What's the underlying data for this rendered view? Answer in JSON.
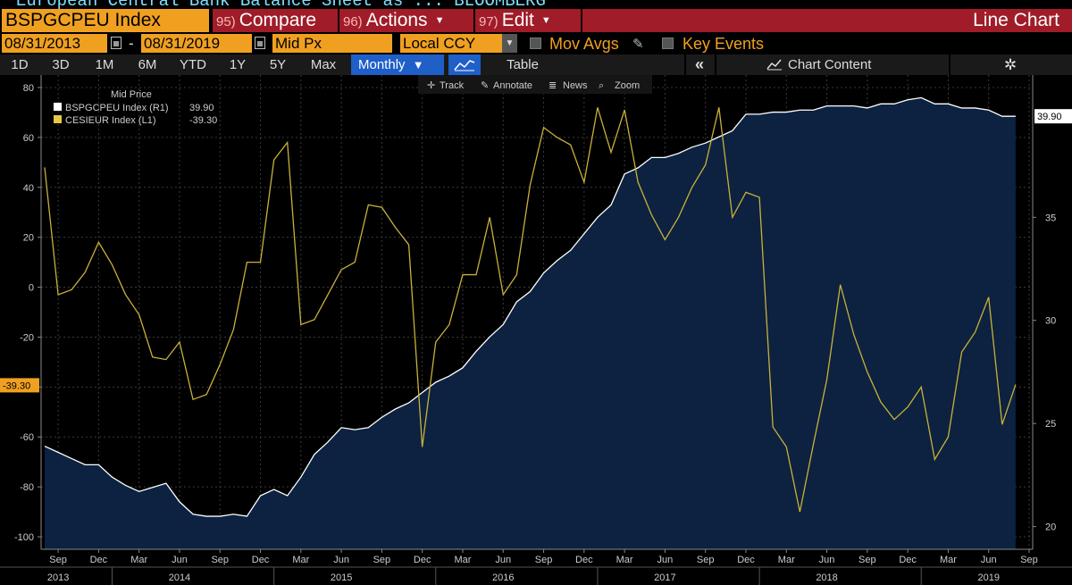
{
  "window": {
    "title_partial": "European Central Bank Balance Sheet as ...  BLOOMBERG"
  },
  "command_bar": {
    "ticker": "BSPGCPEU Index",
    "menus": [
      {
        "num": "95)",
        "label": "Compare",
        "has_dropdown": false
      },
      {
        "num": "96)",
        "label": "Actions",
        "has_dropdown": true
      },
      {
        "num": "97)",
        "label": "Edit",
        "has_dropdown": true
      }
    ],
    "chart_type": "Line Chart"
  },
  "options_bar": {
    "start_date": "08/31/2013",
    "date_separator": "-",
    "end_date": "08/31/2019",
    "field": "Mid Px",
    "currency": "Local CCY",
    "mov_avgs_label": "Mov Avgs",
    "key_events_label": "Key Events"
  },
  "timeframe_bar": {
    "buttons": [
      "1D",
      "3D",
      "1M",
      "6M",
      "YTD",
      "1Y",
      "5Y",
      "Max"
    ],
    "frequency": "Monthly",
    "table_label": "Table",
    "collapse_icon": "double-chevron-left-icon",
    "chart_content_label": "Chart Content",
    "settings_icon": "gear-icon"
  },
  "chart_toolbar": {
    "track": "Track",
    "annotate": "Annotate",
    "news": "News",
    "zoom": "Zoom"
  },
  "legend": {
    "title": "Mid Price",
    "entries": [
      {
        "label": "BSPGCPEU Index  (R1)",
        "value": "39.90",
        "color": "#ffffff"
      },
      {
        "label": "CESIEUR Index  (L1)",
        "value": "-39.30",
        "color": "#e8c84a"
      }
    ]
  },
  "colors": {
    "accent_orange": "#f0a020",
    "menu_red": "#a01c28",
    "area_fill": "#0c2240",
    "cesi_line": "#c9b13a",
    "active_blue": "#1e5fc8"
  },
  "chart_data": {
    "type": "line",
    "title": "",
    "x_ticks": [
      {
        "date": "2013-09",
        "label": "Sep"
      },
      {
        "date": "2013-12",
        "label": "Dec"
      },
      {
        "date": "2014-03",
        "label": "Mar"
      },
      {
        "date": "2014-06",
        "label": "Jun"
      },
      {
        "date": "2014-09",
        "label": "Sep"
      },
      {
        "date": "2014-12",
        "label": "Dec"
      },
      {
        "date": "2015-03",
        "label": "Mar"
      },
      {
        "date": "2015-06",
        "label": "Jun"
      },
      {
        "date": "2015-09",
        "label": "Sep"
      },
      {
        "date": "2015-12",
        "label": "Dec"
      },
      {
        "date": "2016-03",
        "label": "Mar"
      },
      {
        "date": "2016-06",
        "label": "Jun"
      },
      {
        "date": "2016-09",
        "label": "Sep"
      },
      {
        "date": "2016-12",
        "label": "Dec"
      },
      {
        "date": "2017-03",
        "label": "Mar"
      },
      {
        "date": "2017-06",
        "label": "Jun"
      },
      {
        "date": "2017-09",
        "label": "Sep"
      },
      {
        "date": "2017-12",
        "label": "Dec"
      },
      {
        "date": "2018-03",
        "label": "Mar"
      },
      {
        "date": "2018-06",
        "label": "Jun"
      },
      {
        "date": "2018-09",
        "label": "Sep"
      },
      {
        "date": "2018-12",
        "label": "Dec"
      },
      {
        "date": "2019-03",
        "label": "Mar"
      },
      {
        "date": "2019-06",
        "label": "Jun"
      },
      {
        "date": "2019-09",
        "label": "Sep"
      }
    ],
    "year_labels": [
      {
        "date": "2013-09",
        "label": "2013"
      },
      {
        "date": "2014-06",
        "label": "2014"
      },
      {
        "date": "2015-06",
        "label": "2015"
      },
      {
        "date": "2016-06",
        "label": "2016"
      },
      {
        "date": "2017-06",
        "label": "2017"
      },
      {
        "date": "2018-06",
        "label": "2018"
      },
      {
        "date": "2019-06",
        "label": "2019"
      }
    ],
    "x_range": [
      "2013-08",
      "2019-09"
    ],
    "left_axis": {
      "series": "CESIEUR Index",
      "ylim": [
        -105,
        85
      ],
      "ticks": [
        80,
        60,
        40,
        20,
        0,
        -20,
        -40,
        -60,
        -80,
        -100
      ]
    },
    "right_axis": {
      "series": "BSPGCPEU Index",
      "ylim": [
        18.9,
        41.9
      ],
      "ticks": [
        20,
        25,
        30,
        35
      ]
    },
    "grid": true,
    "legend_position": "top-left",
    "last_value_labels": {
      "right": "39.90",
      "left": "-39.30"
    },
    "series": [
      {
        "name": "BSPGCPEU Index",
        "axis": "right",
        "style": "area",
        "dates": [
          "2013-08",
          "2013-09",
          "2013-10",
          "2013-11",
          "2013-12",
          "2014-01",
          "2014-02",
          "2014-03",
          "2014-04",
          "2014-05",
          "2014-06",
          "2014-07",
          "2014-08",
          "2014-09",
          "2014-10",
          "2014-11",
          "2014-12",
          "2015-01",
          "2015-02",
          "2015-03",
          "2015-04",
          "2015-05",
          "2015-06",
          "2015-07",
          "2015-08",
          "2015-09",
          "2015-10",
          "2015-11",
          "2015-12",
          "2016-01",
          "2016-02",
          "2016-03",
          "2016-04",
          "2016-05",
          "2016-06",
          "2016-07",
          "2016-08",
          "2016-09",
          "2016-10",
          "2016-11",
          "2016-12",
          "2017-01",
          "2017-02",
          "2017-03",
          "2017-04",
          "2017-05",
          "2017-06",
          "2017-07",
          "2017-08",
          "2017-09",
          "2017-10",
          "2017-11",
          "2017-12",
          "2018-01",
          "2018-02",
          "2018-03",
          "2018-04",
          "2018-05",
          "2018-06",
          "2018-07",
          "2018-08",
          "2018-09",
          "2018-10",
          "2018-11",
          "2018-12",
          "2019-01",
          "2019-02",
          "2019-03",
          "2019-04",
          "2019-05",
          "2019-06",
          "2019-07",
          "2019-08"
        ],
        "values": [
          23.9,
          23.6,
          23.3,
          23.0,
          23.0,
          22.4,
          22.0,
          21.7,
          21.9,
          22.1,
          21.2,
          20.6,
          20.5,
          20.5,
          20.6,
          20.5,
          21.5,
          21.8,
          21.5,
          22.4,
          23.5,
          24.1,
          24.8,
          24.7,
          24.8,
          25.3,
          25.7,
          26.0,
          26.5,
          27.0,
          27.3,
          27.7,
          28.5,
          29.2,
          29.8,
          30.9,
          31.4,
          32.3,
          32.9,
          33.4,
          34.2,
          35.0,
          35.6,
          37.1,
          37.4,
          37.9,
          37.9,
          38.1,
          38.4,
          38.6,
          38.9,
          39.2,
          40.0,
          40.0,
          40.1,
          40.1,
          40.2,
          40.2,
          40.4,
          40.4,
          40.4,
          40.3,
          40.5,
          40.5,
          40.7,
          40.8,
          40.5,
          40.5,
          40.3,
          40.3,
          40.2,
          39.9,
          39.9
        ]
      },
      {
        "name": "CESIEUR Index",
        "axis": "left",
        "style": "line",
        "dates": [
          "2013-08",
          "2013-09",
          "2013-10",
          "2013-11",
          "2013-12",
          "2014-01",
          "2014-02",
          "2014-03",
          "2014-04",
          "2014-05",
          "2014-06",
          "2014-07",
          "2014-08",
          "2014-09",
          "2014-10",
          "2014-11",
          "2014-12",
          "2015-01",
          "2015-02",
          "2015-03",
          "2015-04",
          "2015-05",
          "2015-06",
          "2015-07",
          "2015-08",
          "2015-09",
          "2015-10",
          "2015-11",
          "2015-12",
          "2016-01",
          "2016-02",
          "2016-03",
          "2016-04",
          "2016-05",
          "2016-06",
          "2016-07",
          "2016-08",
          "2016-09",
          "2016-10",
          "2016-11",
          "2016-12",
          "2017-01",
          "2017-02",
          "2017-03",
          "2017-04",
          "2017-05",
          "2017-06",
          "2017-07",
          "2017-08",
          "2017-09",
          "2017-10",
          "2017-11",
          "2017-12",
          "2018-01",
          "2018-02",
          "2018-03",
          "2018-04",
          "2018-05",
          "2018-06",
          "2018-07",
          "2018-08",
          "2018-09",
          "2018-10",
          "2018-11",
          "2018-12",
          "2019-01",
          "2019-02",
          "2019-03",
          "2019-04",
          "2019-05",
          "2019-06",
          "2019-07",
          "2019-08"
        ],
        "values": [
          48,
          -3,
          -1,
          6,
          18,
          9,
          -3,
          -11,
          -28,
          -29,
          -22,
          -45,
          -43,
          -31,
          -17,
          10,
          10,
          51,
          58,
          -15,
          -13,
          -3,
          7,
          10,
          33,
          32,
          24,
          17,
          -64,
          -22,
          -15,
          5,
          5,
          28,
          -3,
          5,
          41,
          64,
          60,
          57,
          42,
          72,
          54,
          71,
          42,
          29,
          19,
          28,
          40,
          49,
          72,
          28,
          38,
          36,
          -56,
          -64,
          -90,
          -63,
          -37,
          1,
          -19,
          -34,
          -46,
          -53,
          -48,
          -40,
          -69,
          -60,
          -26,
          -18,
          -4,
          -55,
          -39
        ]
      }
    ]
  }
}
